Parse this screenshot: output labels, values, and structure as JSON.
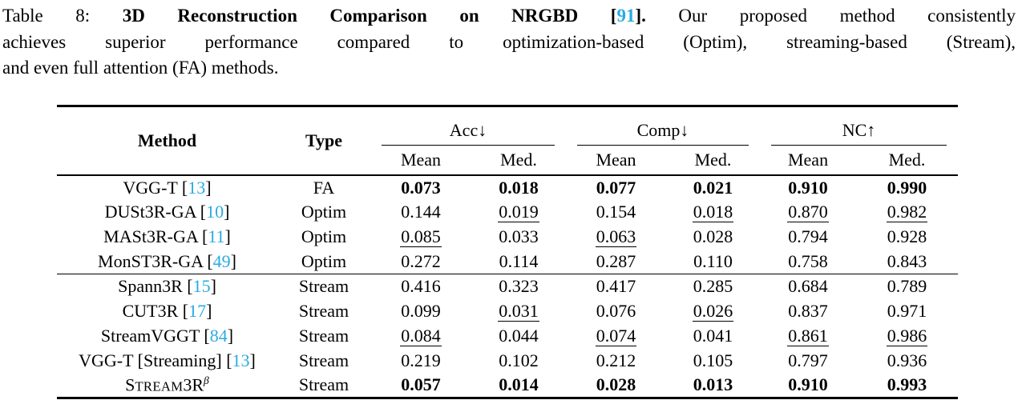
{
  "colors": {
    "citation": "#29abe2",
    "text": "#000000",
    "rule": "#000000"
  },
  "caption": {
    "lines": [
      {
        "justify": true,
        "segments": [
          {
            "text": "Table 8: ",
            "style": "plain"
          },
          {
            "text": "3D Reconstruction Comparison on NRGBD [",
            "style": "bold"
          },
          {
            "text": "91",
            "style": "boldref"
          },
          {
            "text": "].",
            "style": "bold"
          },
          {
            "text": " Our proposed method consistently",
            "style": "plain"
          }
        ]
      },
      {
        "justify": true,
        "segments": [
          {
            "text": "achieves superior performance compared to optimization-based (Optim), streaming-based (Stream),",
            "style": "plain"
          }
        ]
      },
      {
        "justify": false,
        "segments": [
          {
            "text": "and even full attention (FA) methods.",
            "style": "plain"
          }
        ]
      }
    ]
  },
  "table": {
    "headers": {
      "method": "Method",
      "type": "Type",
      "groups": [
        {
          "label": "Acc↓",
          "subs": [
            "Mean",
            "Med."
          ]
        },
        {
          "label": "Comp↓",
          "subs": [
            "Mean",
            "Med."
          ]
        },
        {
          "label": "NC↑",
          "subs": [
            "Mean",
            "Med."
          ]
        }
      ]
    },
    "groups": [
      {
        "rows": [
          {
            "method": {
              "parts": [
                {
                  "text": "VGG-T [",
                  "style": "plain"
                },
                {
                  "text": "13",
                  "style": "ref"
                },
                {
                  "text": "]",
                  "style": "plain"
                }
              ]
            },
            "type": "FA",
            "cells": [
              {
                "v": "0.073",
                "s": "b"
              },
              {
                "v": "0.018",
                "s": "b"
              },
              {
                "v": "0.077",
                "s": "b"
              },
              {
                "v": "0.021",
                "s": "b"
              },
              {
                "v": "0.910",
                "s": "b"
              },
              {
                "v": "0.990",
                "s": "b"
              }
            ]
          },
          {
            "method": {
              "parts": [
                {
                  "text": "DUSt3R-GA [",
                  "style": "plain"
                },
                {
                  "text": "10",
                  "style": "ref"
                },
                {
                  "text": "]",
                  "style": "plain"
                }
              ]
            },
            "type": "Optim",
            "cells": [
              {
                "v": "0.144",
                "s": ""
              },
              {
                "v": "0.019",
                "s": "u"
              },
              {
                "v": "0.154",
                "s": ""
              },
              {
                "v": "0.018",
                "s": "u"
              },
              {
                "v": "0.870",
                "s": "u"
              },
              {
                "v": "0.982",
                "s": "u"
              }
            ]
          },
          {
            "method": {
              "parts": [
                {
                  "text": "MASt3R-GA [",
                  "style": "plain"
                },
                {
                  "text": "11",
                  "style": "ref"
                },
                {
                  "text": "]",
                  "style": "plain"
                }
              ]
            },
            "type": "Optim",
            "cells": [
              {
                "v": "0.085",
                "s": "u"
              },
              {
                "v": "0.033",
                "s": ""
              },
              {
                "v": "0.063",
                "s": "u"
              },
              {
                "v": "0.028",
                "s": ""
              },
              {
                "v": "0.794",
                "s": ""
              },
              {
                "v": "0.928",
                "s": ""
              }
            ]
          },
          {
            "method": {
              "parts": [
                {
                  "text": "MonST3R-GA [",
                  "style": "plain"
                },
                {
                  "text": "49",
                  "style": "ref"
                },
                {
                  "text": "]",
                  "style": "plain"
                }
              ]
            },
            "type": "Optim",
            "cells": [
              {
                "v": "0.272",
                "s": ""
              },
              {
                "v": "0.114",
                "s": ""
              },
              {
                "v": "0.287",
                "s": ""
              },
              {
                "v": "0.110",
                "s": ""
              },
              {
                "v": "0.758",
                "s": ""
              },
              {
                "v": "0.843",
                "s": ""
              }
            ]
          }
        ]
      },
      {
        "rows": [
          {
            "method": {
              "parts": [
                {
                  "text": "Spann3R [",
                  "style": "plain"
                },
                {
                  "text": "15",
                  "style": "ref"
                },
                {
                  "text": "]",
                  "style": "plain"
                }
              ]
            },
            "type": "Stream",
            "cells": [
              {
                "v": "0.416",
                "s": ""
              },
              {
                "v": "0.323",
                "s": ""
              },
              {
                "v": "0.417",
                "s": ""
              },
              {
                "v": "0.285",
                "s": ""
              },
              {
                "v": "0.684",
                "s": ""
              },
              {
                "v": "0.789",
                "s": ""
              }
            ]
          },
          {
            "method": {
              "parts": [
                {
                  "text": "CUT3R [",
                  "style": "plain"
                },
                {
                  "text": "17",
                  "style": "ref"
                },
                {
                  "text": "]",
                  "style": "plain"
                }
              ]
            },
            "type": "Stream",
            "cells": [
              {
                "v": "0.099",
                "s": ""
              },
              {
                "v": "0.031",
                "s": "u"
              },
              {
                "v": "0.076",
                "s": ""
              },
              {
                "v": "0.026",
                "s": "u"
              },
              {
                "v": "0.837",
                "s": ""
              },
              {
                "v": "0.971",
                "s": ""
              }
            ]
          },
          {
            "method": {
              "parts": [
                {
                  "text": "StreamVGGT [",
                  "style": "plain"
                },
                {
                  "text": "84",
                  "style": "ref"
                },
                {
                  "text": "]",
                  "style": "plain"
                }
              ]
            },
            "type": "Stream",
            "cells": [
              {
                "v": "0.084",
                "s": "u"
              },
              {
                "v": "0.044",
                "s": ""
              },
              {
                "v": "0.074",
                "s": "u"
              },
              {
                "v": "0.041",
                "s": ""
              },
              {
                "v": "0.861",
                "s": "u"
              },
              {
                "v": "0.986",
                "s": "u"
              }
            ]
          },
          {
            "method": {
              "parts": [
                {
                  "text": "VGG-T [Streaming] [",
                  "style": "plain"
                },
                {
                  "text": "13",
                  "style": "ref"
                },
                {
                  "text": "]",
                  "style": "plain"
                }
              ]
            },
            "type": "Stream",
            "cells": [
              {
                "v": "0.219",
                "s": ""
              },
              {
                "v": "0.102",
                "s": ""
              },
              {
                "v": "0.212",
                "s": ""
              },
              {
                "v": "0.105",
                "s": ""
              },
              {
                "v": "0.797",
                "s": ""
              },
              {
                "v": "0.936",
                "s": ""
              }
            ]
          },
          {
            "method": {
              "parts": [
                {
                  "text": "S",
                  "style": "plain"
                },
                {
                  "text": "TREAM",
                  "style": "sc"
                },
                {
                  "text": "3R",
                  "style": "plain"
                },
                {
                  "text": "β",
                  "style": "sup"
                }
              ]
            },
            "type": "Stream",
            "cells": [
              {
                "v": "0.057",
                "s": "b"
              },
              {
                "v": "0.014",
                "s": "b"
              },
              {
                "v": "0.028",
                "s": "b"
              },
              {
                "v": "0.013",
                "s": "b"
              },
              {
                "v": "0.910",
                "s": "b"
              },
              {
                "v": "0.993",
                "s": "b"
              }
            ]
          }
        ]
      }
    ]
  }
}
